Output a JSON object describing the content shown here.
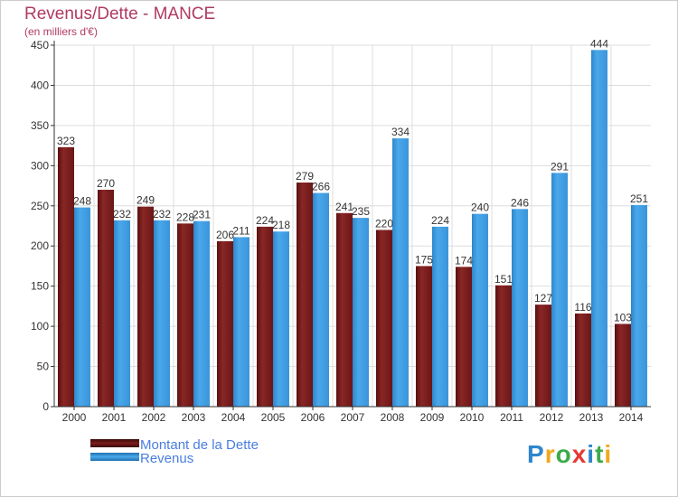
{
  "title": "Revenus/Dette - MANCE",
  "subtitle": "(en milliers d'€)",
  "logo": [
    "P",
    "r",
    "o",
    "x",
    "i",
    "t",
    "i"
  ],
  "colors": {
    "dette": "#7a1d1d",
    "revenus": "#3f9be0",
    "title": "#b03a60",
    "legend_text": "#4a7de0"
  },
  "chart_data": {
    "type": "bar",
    "title": "Revenus/Dette - MANCE",
    "ylabel": "(en milliers d'€)",
    "xlabel": "",
    "ylim": [
      0,
      450
    ],
    "yticks": [
      0,
      50,
      100,
      150,
      200,
      250,
      300,
      350,
      400,
      450
    ],
    "categories": [
      "2000",
      "2001",
      "2002",
      "2003",
      "2004",
      "2005",
      "2006",
      "2007",
      "2008",
      "2009",
      "2010",
      "2011",
      "2012",
      "2013",
      "2014"
    ],
    "series": [
      {
        "name": "Montant de la Dette",
        "values": [
          323,
          270,
          249,
          228,
          206,
          224,
          279,
          241,
          220,
          175,
          174,
          151,
          127,
          116,
          103
        ]
      },
      {
        "name": "Revenus",
        "values": [
          248,
          232,
          232,
          231,
          211,
          218,
          266,
          235,
          334,
          224,
          240,
          246,
          291,
          444,
          251
        ]
      }
    ],
    "legend_position": "bottom-left",
    "grid": true
  }
}
